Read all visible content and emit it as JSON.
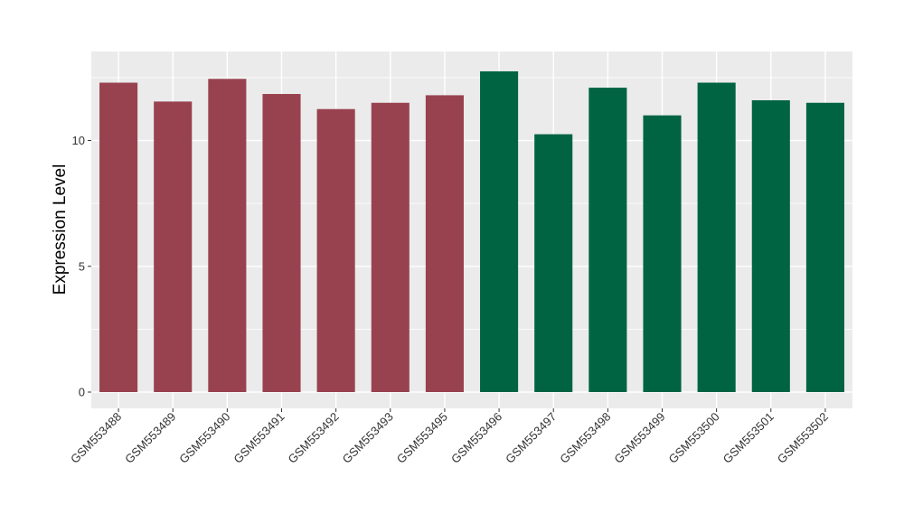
{
  "chart_data": {
    "type": "bar",
    "title": "",
    "xlabel": "",
    "ylabel": "Expression Level",
    "ylim": [
      0,
      13.0
    ],
    "yticks": [
      0,
      5,
      10
    ],
    "ytick_labels": [
      "0",
      "5",
      "10"
    ],
    "grid": true,
    "legend": "none",
    "categories": [
      "GSM553488",
      "GSM553489",
      "GSM553490",
      "GSM553491",
      "GSM553492",
      "GSM553493",
      "GSM553495",
      "GSM553496",
      "GSM553497",
      "GSM553498",
      "GSM553499",
      "GSM553500",
      "GSM553501",
      "GSM553502"
    ],
    "values": [
      12.3,
      11.55,
      12.45,
      11.85,
      11.25,
      11.5,
      11.8,
      12.75,
      10.25,
      12.1,
      11.0,
      12.3,
      11.6,
      11.5
    ],
    "bar_colors": [
      "#99424f",
      "#99424f",
      "#99424f",
      "#99424f",
      "#99424f",
      "#99424f",
      "#99424f",
      "#006443",
      "#006443",
      "#006443",
      "#006443",
      "#006443",
      "#006443",
      "#006443"
    ],
    "panel_background": "#ebebeb",
    "gridline_color": "#ffffff"
  }
}
